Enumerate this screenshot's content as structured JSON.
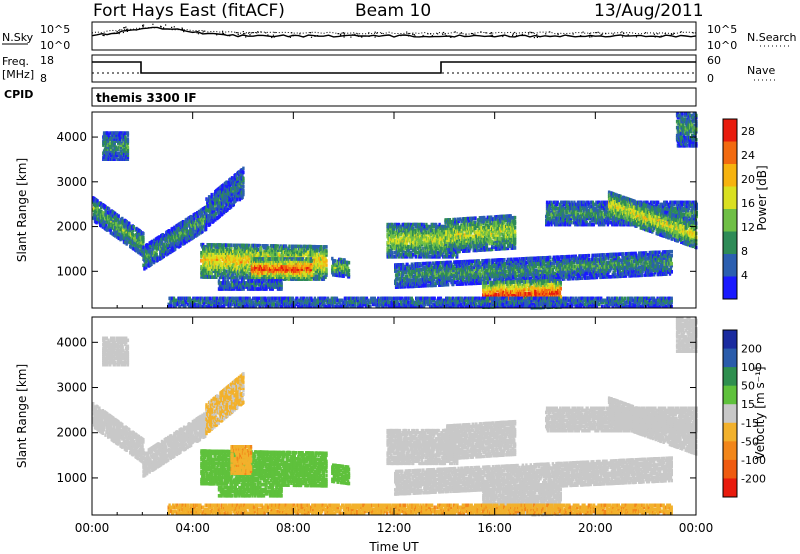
{
  "header": {
    "radar": "Fort Hays East (fitACF)",
    "beam": "Beam 10",
    "date": "13/Aug/2011"
  },
  "panels": {
    "noise": {
      "left_label": "N.Sky",
      "right_label": "N.Search",
      "ticks_left": [
        "10^5",
        "10^0"
      ],
      "ticks_right": [
        "10^5",
        "10^0"
      ]
    },
    "freq": {
      "left_label": "Freq.",
      "left_unit": "[MHz]",
      "ticks_left": [
        "18",
        "8"
      ],
      "ticks_right": [
        "60",
        "0"
      ],
      "right_label": "Nave",
      "cpid_label": "CPID"
    },
    "mode": {
      "text": "themis 3300 IF"
    }
  },
  "colors": {
    "power_scale": [
      "#1a1aff",
      "#2b5fb0",
      "#2e8b57",
      "#6fbf45",
      "#d9e021",
      "#f6b30f",
      "#f26a10",
      "#e81b0d"
    ],
    "velocity_scale": [
      "#1a2b9f",
      "#2a5cab",
      "#2f8f4f",
      "#5fc13c",
      "#c8c8c8",
      "#f2b12c",
      "#f2861a",
      "#ef5b10",
      "#e81b0d"
    ]
  },
  "chart_data": [
    {
      "type": "heatmap",
      "name": "power",
      "ylabel": "Slant Range [km]",
      "xlabel": "Time UT",
      "colorbar_label": "Power [dB]",
      "colorbar_ticks": [
        "28",
        "24",
        "20",
        "16",
        "12",
        "8",
        "4"
      ],
      "colorbar_range": [
        0,
        30
      ],
      "x_ticks": [
        "00:00",
        "04:00",
        "08:00",
        "12:00",
        "16:00",
        "20:00",
        "00:00"
      ],
      "y_ticks": [
        "4000",
        "3000",
        "2000",
        "1000"
      ],
      "xlim_hours": [
        0,
        24
      ],
      "ylim_km": [
        180,
        4560
      ],
      "regions": [
        {
          "t0": 0.0,
          "t1": 2.0,
          "r0": 2400,
          "r1": 1600,
          "w": 260,
          "p": 12
        },
        {
          "t0": 2.0,
          "t1": 4.5,
          "r0": 1300,
          "r1": 2200,
          "w": 260,
          "p": 10
        },
        {
          "t0": 4.5,
          "t1": 6.0,
          "r0": 2300,
          "r1": 3000,
          "w": 320,
          "p": 8
        },
        {
          "t0": 0.4,
          "t1": 1.4,
          "r0": 3800,
          "r1": 3800,
          "w": 300,
          "p": 10
        },
        {
          "t0": 4.3,
          "t1": 9.3,
          "r0": 1250,
          "r1": 1200,
          "w": 380,
          "p": 20
        },
        {
          "t0": 6.3,
          "t1": 8.7,
          "r0": 1050,
          "r1": 1050,
          "w": 230,
          "p": 28
        },
        {
          "t0": 5.0,
          "t1": 7.5,
          "r0": 700,
          "r1": 700,
          "w": 100,
          "p": 8
        },
        {
          "t0": 9.5,
          "t1": 10.2,
          "r0": 1100,
          "r1": 1050,
          "w": 180,
          "p": 14
        },
        {
          "t0": 11.7,
          "t1": 14.5,
          "r0": 1700,
          "r1": 1700,
          "w": 380,
          "p": 16
        },
        {
          "t0": 14.0,
          "t1": 16.8,
          "r0": 1800,
          "r1": 1900,
          "w": 380,
          "p": 16
        },
        {
          "t0": 12.0,
          "t1": 23.0,
          "r0": 900,
          "r1": 1200,
          "w": 260,
          "p": 10
        },
        {
          "t0": 15.5,
          "t1": 18.6,
          "r0": 450,
          "r1": 500,
          "w": 300,
          "p": 28
        },
        {
          "t0": 18.0,
          "t1": 24.0,
          "r0": 2300,
          "r1": 2300,
          "w": 260,
          "p": 10
        },
        {
          "t0": 20.5,
          "t1": 24.0,
          "r0": 2500,
          "r1": 1800,
          "w": 280,
          "p": 18
        },
        {
          "t0": 3.0,
          "t1": 23.0,
          "r0": 320,
          "r1": 320,
          "w": 110,
          "p": 8
        },
        {
          "t0": 23.2,
          "t1": 24.0,
          "r0": 4200,
          "r1": 4200,
          "w": 400,
          "p": 10
        }
      ]
    },
    {
      "type": "heatmap",
      "name": "velocity",
      "ylabel": "Slant Range [km]",
      "xlabel": "Time UT",
      "colorbar_label": "Velocity [m s⁻¹]",
      "colorbar_ticks": [
        "200",
        "100",
        "50",
        "15",
        "-15",
        "-50",
        "-100",
        "-200"
      ],
      "x_ticks": [
        "00:00",
        "04:00",
        "08:00",
        "12:00",
        "16:00",
        "20:00",
        "00:00"
      ],
      "y_ticks": [
        "4000",
        "3000",
        "2000",
        "1000"
      ],
      "xlim_hours": [
        0,
        24
      ],
      "ylim_km": [
        180,
        4560
      ],
      "regions": [
        {
          "t0": 0.0,
          "t1": 2.0,
          "r0": 2400,
          "r1": 1600,
          "w": 260,
          "v": 0
        },
        {
          "t0": 2.0,
          "t1": 4.5,
          "r0": 1300,
          "r1": 2200,
          "w": 260,
          "v": 0
        },
        {
          "t0": 4.5,
          "t1": 6.0,
          "r0": 2300,
          "r1": 3000,
          "w": 320,
          "v": -20
        },
        {
          "t0": 0.4,
          "t1": 1.4,
          "r0": 3800,
          "r1": 3800,
          "w": 300,
          "v": 0
        },
        {
          "t0": 4.3,
          "t1": 9.3,
          "r0": 1250,
          "r1": 1200,
          "w": 380,
          "v": 30
        },
        {
          "t0": 5.5,
          "t1": 6.3,
          "r0": 1400,
          "r1": 1400,
          "w": 300,
          "v": -40
        },
        {
          "t0": 5.0,
          "t1": 7.5,
          "r0": 700,
          "r1": 700,
          "w": 100,
          "v": 30
        },
        {
          "t0": 9.5,
          "t1": 10.2,
          "r0": 1100,
          "r1": 1050,
          "w": 180,
          "v": 35
        },
        {
          "t0": 11.7,
          "t1": 14.5,
          "r0": 1700,
          "r1": 1700,
          "w": 380,
          "v": 0
        },
        {
          "t0": 14.0,
          "t1": 16.8,
          "r0": 1800,
          "r1": 1900,
          "w": 380,
          "v": 0
        },
        {
          "t0": 12.0,
          "t1": 23.0,
          "r0": 900,
          "r1": 1200,
          "w": 260,
          "v": 0
        },
        {
          "t0": 15.5,
          "t1": 18.6,
          "r0": 450,
          "r1": 500,
          "w": 300,
          "v": 0
        },
        {
          "t0": 18.0,
          "t1": 24.0,
          "r0": 2300,
          "r1": 2300,
          "w": 260,
          "v": 0
        },
        {
          "t0": 20.5,
          "t1": 24.0,
          "r0": 2500,
          "r1": 1800,
          "w": 280,
          "v": 0
        },
        {
          "t0": 3.0,
          "t1": 23.0,
          "r0": 320,
          "r1": 320,
          "w": 110,
          "v": -40
        },
        {
          "t0": 23.2,
          "t1": 24.0,
          "r0": 4200,
          "r1": 4200,
          "w": 400,
          "v": 0
        }
      ]
    }
  ]
}
